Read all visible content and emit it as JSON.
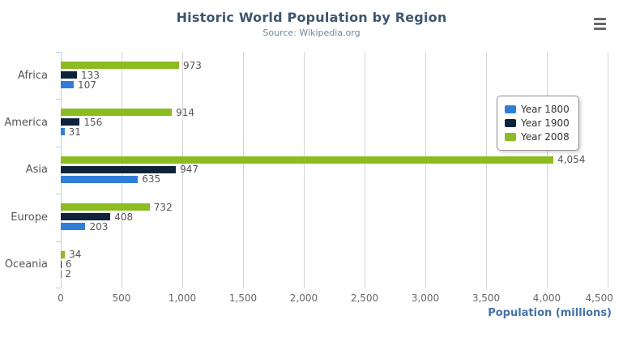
{
  "chart_data": {
    "type": "bar",
    "title": "Historic World Population by Region",
    "subtitle": "Source: Wikipedia.org",
    "categories": [
      "Africa",
      "America",
      "Asia",
      "Europe",
      "Oceania"
    ],
    "series": [
      {
        "name": "Year 1800",
        "color": "#2f7ed8",
        "values": [
          107,
          31,
          635,
          203,
          2
        ],
        "labels": [
          "107",
          "31",
          "635",
          "203",
          "2"
        ]
      },
      {
        "name": "Year 1900",
        "color": "#0d233a",
        "values": [
          133,
          156,
          947,
          408,
          6
        ],
        "labels": [
          "133",
          "156",
          "947",
          "408",
          "6"
        ]
      },
      {
        "name": "Year 2008",
        "color": "#8bbc21",
        "values": [
          973,
          914,
          4054,
          732,
          34
        ],
        "labels": [
          "973",
          "914",
          "4,054",
          "732",
          "34"
        ]
      }
    ],
    "bar_order_top_to_bottom": [
      "Year 2008",
      "Year 1900",
      "Year 1800"
    ],
    "xlabel": "Population (millions)",
    "xlim": [
      0,
      4500
    ],
    "x_ticks": [
      "0",
      "500",
      "1,000",
      "1,500",
      "2,000",
      "2,500",
      "3,000",
      "3,500",
      "4,000",
      "4,500"
    ],
    "grid": true,
    "legend_position": "right",
    "legend_entries": [
      "Year 1800",
      "Year 1900",
      "Year 2008"
    ]
  },
  "export_menu": {
    "icon": "hamburger-menu"
  },
  "colors": {
    "title": "#3E576F",
    "subtitle": "#6D869F",
    "axis_title": "#4572A7",
    "gridline": "#d4d4d4",
    "category_axis_line": "#C0D0E0",
    "labels": "#555555",
    "tick_labels": "#666666"
  }
}
